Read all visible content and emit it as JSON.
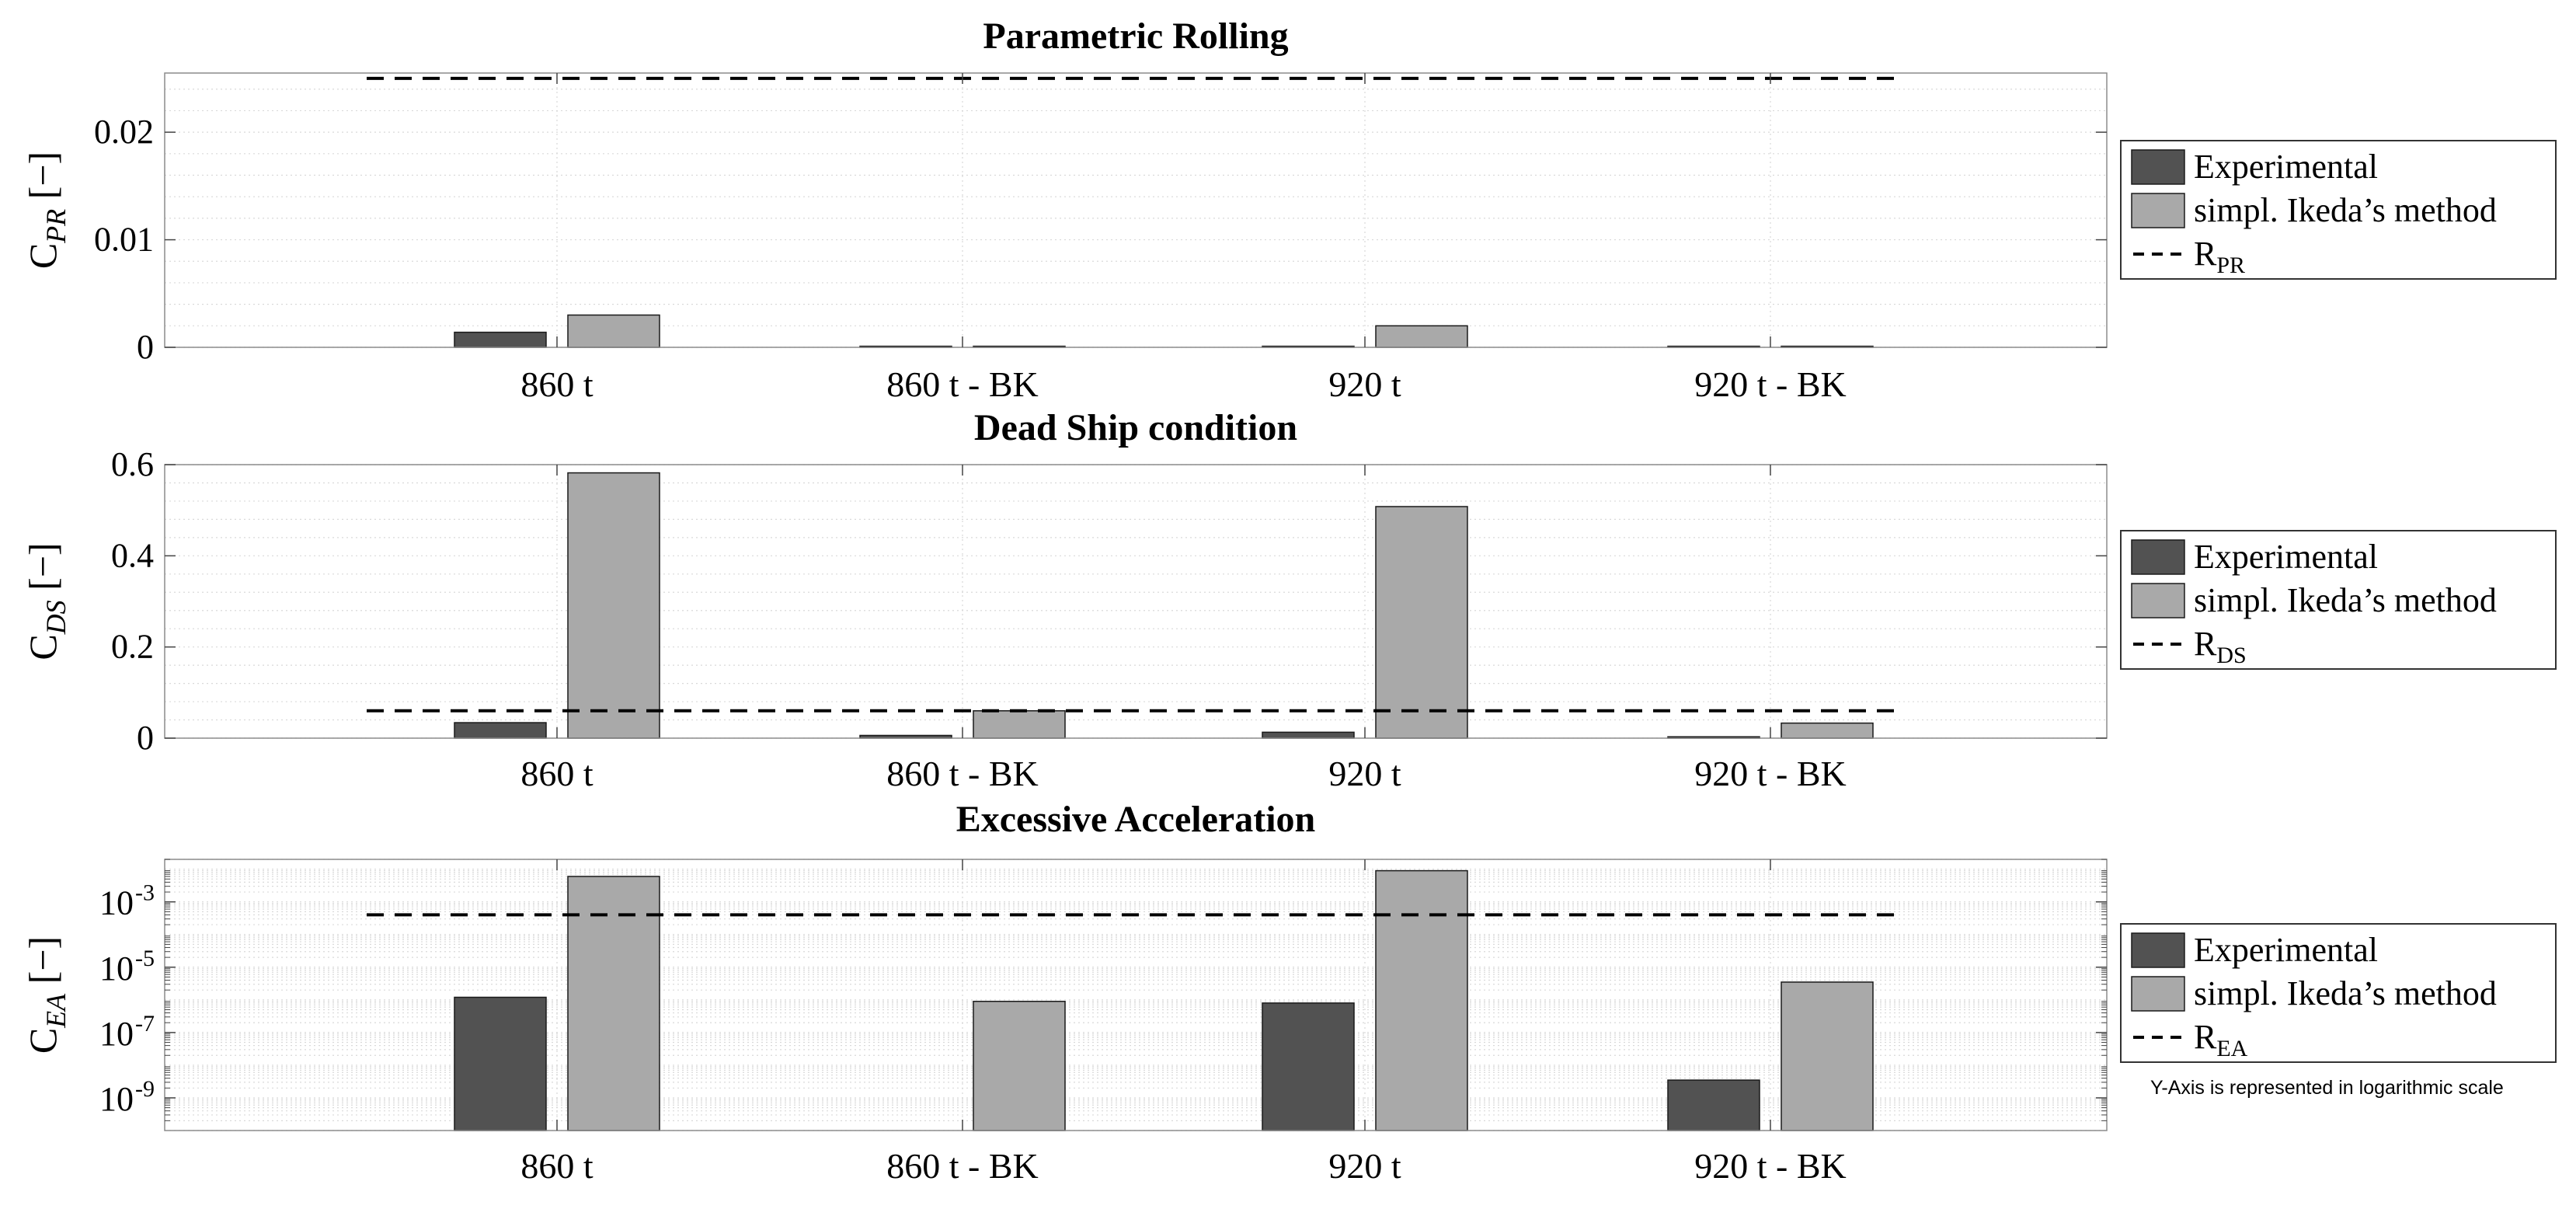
{
  "chart_data": [
    {
      "type": "bar",
      "title": "Parametric Rolling",
      "ylabel": {
        "main": "C",
        "sub": "PR",
        "unit": "[−]"
      },
      "categories": [
        "860 t",
        "860 t - BK",
        "920 t",
        "920 t - BK"
      ],
      "series": [
        {
          "name": "Experimental",
          "color": "#525252",
          "values": [
            0.0014,
            0.0001,
            0.0001,
            0.0001
          ]
        },
        {
          "name": "simpl. Ikeda’s method",
          "color": "#a9a9a9",
          "values": [
            0.003,
            0.0001,
            0.002,
            0.0001
          ]
        }
      ],
      "threshold": {
        "name": "R",
        "sub": "PR",
        "value": 0.025
      },
      "ylim": [
        0,
        0.0255
      ],
      "yticks": [
        0,
        0.01,
        0.02
      ],
      "ytick_labels": [
        "0",
        "0.01",
        "0.02"
      ],
      "yscale": "linear",
      "grid": true,
      "legend": "right"
    },
    {
      "type": "bar",
      "title": "Dead Ship condition",
      "ylabel": {
        "main": "C",
        "sub": "DS",
        "unit": "[−]"
      },
      "categories": [
        "860 t",
        "860 t - BK",
        "920 t",
        "920 t - BK"
      ],
      "series": [
        {
          "name": "Experimental",
          "color": "#525252",
          "values": [
            0.034,
            0.006,
            0.013,
            0.003
          ]
        },
        {
          "name": "simpl. Ikeda’s method",
          "color": "#a9a9a9",
          "values": [
            0.582,
            0.06,
            0.508,
            0.033
          ]
        }
      ],
      "threshold": {
        "name": "R",
        "sub": "DS",
        "value": 0.06
      },
      "ylim": [
        0,
        0.6
      ],
      "yticks": [
        0,
        0.2,
        0.4,
        0.6
      ],
      "ytick_labels": [
        "0",
        "0.2",
        "0.4",
        "0.6"
      ],
      "yscale": "linear",
      "grid": true,
      "legend": "right"
    },
    {
      "type": "bar",
      "title": "Excessive Acceleration",
      "ylabel": {
        "main": "C",
        "sub": "EA",
        "unit": "[−]"
      },
      "categories": [
        "860 t",
        "860 t - BK",
        "920 t",
        "920 t - BK"
      ],
      "series": [
        {
          "name": "Experimental",
          "color": "#525252",
          "values": [
            1.2e-06,
            null,
            8e-07,
            3.5e-09
          ]
        },
        {
          "name": "simpl. Ikeda’s method",
          "color": "#a9a9a9",
          "values": [
            0.006,
            9e-07,
            0.009,
            3.5e-06
          ]
        }
      ],
      "threshold": {
        "name": "R",
        "sub": "EA",
        "value": 0.0004
      },
      "ylim": [
        1e-10,
        0.02
      ],
      "yticks": [
        1e-09,
        1e-07,
        1e-05,
        0.001
      ],
      "ytick_labels": [
        {
          "base": "10",
          "exp": "-9"
        },
        {
          "base": "10",
          "exp": "-7"
        },
        {
          "base": "10",
          "exp": "-5"
        },
        {
          "base": "10",
          "exp": "-3"
        }
      ],
      "yscale": "log",
      "grid": true,
      "legend": "right"
    }
  ],
  "note": "Y-Axis is represented in logarithmic scale"
}
